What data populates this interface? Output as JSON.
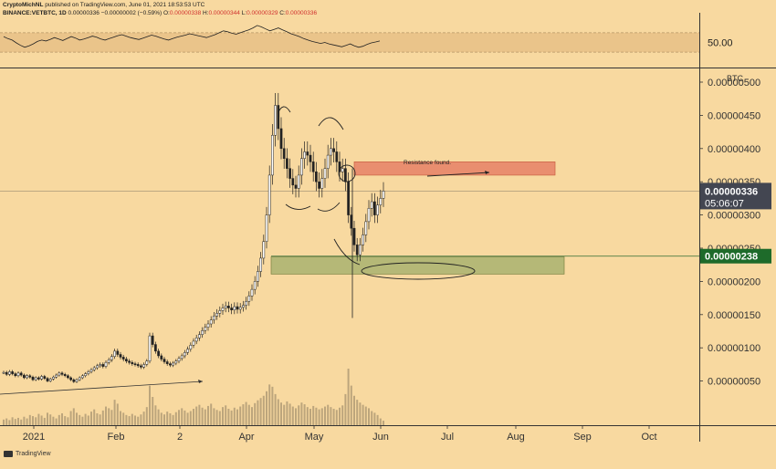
{
  "header": {
    "author": "CryptoMichNL",
    "publish_info": "published on TradingView.com, June 01, 2021 18:53:53 UTC",
    "symbol": "BINANCE:VETBTC, 1D",
    "last": "0.00000336",
    "change": "−0.00000002 (−0.59%)",
    "o_label": "O:",
    "o": "0.00000338",
    "h_label": "H:",
    "h": "0.00000344",
    "l_label": "L:",
    "l": "0.00000329",
    "c_label": "C:",
    "c": "0.00000336"
  },
  "footer": {
    "brand": "TradingView"
  },
  "colors": {
    "background": "#f8d9a0",
    "candle": "#222222",
    "resistance_zone": "#e8866a",
    "support_zone": "#aeb573",
    "last_price_badge": "#434651",
    "support_badge": "#1e6b2a",
    "rsi_band": "#eac48a"
  },
  "chart_data": [
    {
      "type": "line",
      "name": "oscillator-pane",
      "ytick_labels": [
        "50.00"
      ],
      "ylim": [
        0,
        100
      ],
      "band": [
        30,
        70
      ],
      "series": [
        {
          "values": [
            62,
            58,
            55,
            49,
            44,
            40,
            43,
            47,
            52,
            55,
            53,
            56,
            60,
            57,
            54,
            58,
            62,
            59,
            55,
            57,
            60,
            63,
            61,
            57,
            55,
            58,
            61,
            64,
            66,
            63,
            60,
            58,
            56,
            59,
            62,
            65,
            63,
            60,
            57,
            55,
            58,
            61,
            63,
            65,
            68,
            66,
            64,
            62,
            60,
            63,
            66,
            70,
            74,
            72,
            69,
            67,
            70,
            73,
            76,
            80,
            85,
            82,
            78,
            74,
            77,
            80,
            76,
            72,
            68,
            65,
            62,
            58,
            55,
            52,
            50,
            48,
            50,
            47,
            45,
            43,
            41,
            44,
            47,
            43,
            40,
            42,
            46,
            49,
            51,
            53
          ]
        }
      ]
    },
    {
      "type": "candlestick",
      "name": "price-pane",
      "unit_label": "BTC",
      "x_tick_labels": [
        "2021",
        "Feb",
        "2",
        "Apr",
        "May",
        "Jun",
        "Jul",
        "Aug",
        "Sep",
        "Oct"
      ],
      "y_tick_labels": [
        "0.00000500",
        "0.00000450",
        "0.00000400",
        "0.00000350",
        "0.00000300",
        "0.00000250",
        "0.00000200",
        "0.00000150",
        "0.00000100",
        "0.00000050"
      ],
      "ylim": [
        0,
        5e-06
      ],
      "last_price": {
        "value": 3.36e-06,
        "label": "0.00000336",
        "countdown": "05:06:07"
      },
      "support_price": {
        "value": 2.38e-06,
        "label": "0.00000238"
      },
      "closes": [
        6.3e-07,
        6e-07,
        6.4e-07,
        6.1e-07,
        5.8e-07,
        6.2e-07,
        5.9e-07,
        5.5e-07,
        5.8e-07,
        5.6e-07,
        5.2e-07,
        5.5e-07,
        5.3e-07,
        5.7e-07,
        5.4e-07,
        5e-07,
        5.3e-07,
        5.6e-07,
        5.9e-07,
        6.2e-07,
        6e-07,
        5.8e-07,
        5.5e-07,
        5.2e-07,
        4.9e-07,
        5.2e-07,
        5.5e-07,
        5.8e-07,
        6.1e-07,
        6.4e-07,
        6.7e-07,
        7e-07,
        7.3e-07,
        7.5e-07,
        7.2e-07,
        7.8e-07,
        8.2e-07,
        8.7e-07,
        9.5e-07,
        9e-07,
        8.6e-07,
        8.3e-07,
        8e-07,
        7.8e-07,
        7.6e-07,
        7.5e-07,
        7.3e-07,
        7.1e-07,
        7.5e-07,
        8e-07,
        1.18e-06,
        1.05e-06,
        9.5e-07,
        8.8e-07,
        8.3e-07,
        7.9e-07,
        7.6e-07,
        7.4e-07,
        7.7e-07,
        8e-07,
        8.4e-07,
        8.8e-07,
        9.3e-07,
        9.8e-07,
        1.04e-06,
        1.1e-06,
        1.15e-06,
        1.2e-06,
        1.26e-06,
        1.31e-06,
        1.36e-06,
        1.42e-06,
        1.48e-06,
        1.52e-06,
        1.56e-06,
        1.6e-06,
        1.63e-06,
        1.6e-06,
        1.57e-06,
        1.62e-06,
        1.58e-06,
        1.61e-06,
        1.64e-06,
        1.7e-06,
        1.78e-06,
        1.88e-06,
        2e-06,
        2.15e-06,
        2.35e-06,
        2.6e-06,
        3e-06,
        3.6e-06,
        4.2e-06,
        4.65e-06,
        4.3e-06,
        4e-06,
        3.85e-06,
        3.7e-06,
        3.55e-06,
        3.45e-06,
        3.4e-06,
        3.6e-06,
        3.85e-06,
        3.95e-06,
        3.9e-06,
        3.8e-06,
        3.65e-06,
        3.5e-06,
        3.4e-06,
        3.55e-06,
        3.7e-06,
        3.9e-06,
        4e-06,
        3.95e-06,
        3.8e-06,
        3.65e-06,
        3.7e-06,
        3.5e-06,
        3e-06,
        2.8e-06,
        2.55e-06,
        2.4e-06,
        2.55e-06,
        2.7e-06,
        2.9e-06,
        3.1e-06,
        3.2e-06,
        3e-06,
        3.15e-06,
        3.25e-06,
        3.36e-06
      ],
      "volumes": [
        0.1,
        0.12,
        0.09,
        0.14,
        0.11,
        0.13,
        0.1,
        0.15,
        0.12,
        0.18,
        0.16,
        0.14,
        0.2,
        0.17,
        0.13,
        0.22,
        0.19,
        0.15,
        0.12,
        0.18,
        0.21,
        0.16,
        0.14,
        0.25,
        0.3,
        0.22,
        0.18,
        0.15,
        0.2,
        0.17,
        0.24,
        0.28,
        0.21,
        0.19,
        0.26,
        0.33,
        0.3,
        0.27,
        0.45,
        0.38,
        0.25,
        0.22,
        0.18,
        0.16,
        0.2,
        0.17,
        0.15,
        0.19,
        0.24,
        0.32,
        0.7,
        0.5,
        0.35,
        0.28,
        0.22,
        0.19,
        0.24,
        0.21,
        0.18,
        0.23,
        0.27,
        0.3,
        0.26,
        0.22,
        0.25,
        0.29,
        0.33,
        0.36,
        0.31,
        0.28,
        0.34,
        0.38,
        0.3,
        0.27,
        0.25,
        0.32,
        0.35,
        0.29,
        0.26,
        0.31,
        0.28,
        0.33,
        0.37,
        0.41,
        0.36,
        0.32,
        0.39,
        0.44,
        0.48,
        0.52,
        0.6,
        0.72,
        0.68,
        0.55,
        0.46,
        0.4,
        0.36,
        0.42,
        0.38,
        0.33,
        0.3,
        0.35,
        0.4,
        0.37,
        0.32,
        0.29,
        0.34,
        0.31,
        0.28,
        0.3,
        0.33,
        0.36,
        0.32,
        0.29,
        0.27,
        0.31,
        0.35,
        0.55,
        1.0,
        0.7,
        0.52,
        0.45,
        0.4,
        0.36,
        0.33,
        0.3,
        0.25,
        0.22,
        0.18,
        0.12,
        0.08
      ]
    }
  ],
  "annotations": {
    "resistance_label": "Resistance found."
  }
}
